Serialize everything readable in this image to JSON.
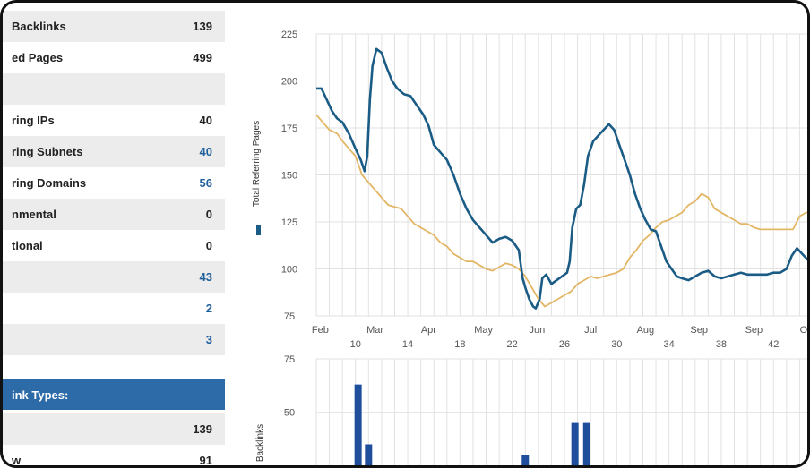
{
  "stats": {
    "rows": [
      {
        "label": "Backlinks",
        "value": "139",
        "blue": false
      },
      {
        "label": "ed Pages",
        "value": "499",
        "blue": false
      },
      {
        "label": "",
        "value": "",
        "blue": false
      },
      {
        "label": "ring IPs",
        "value": "40",
        "blue": false
      },
      {
        "label": "ring Subnets",
        "value": "40",
        "blue": true
      },
      {
        "label": "ring Domains",
        "value": "56",
        "blue": true
      },
      {
        "label": "nmental",
        "value": "0",
        "blue": false
      },
      {
        "label": "tional",
        "value": "0",
        "blue": false
      },
      {
        "label": "",
        "value": "43",
        "blue": true
      },
      {
        "label": "",
        "value": "2",
        "blue": true
      },
      {
        "label": "",
        "value": "3",
        "blue": true
      }
    ],
    "section_header": "ink Types:",
    "section_rows": [
      {
        "label": "",
        "value": "139"
      },
      {
        "label": "w",
        "value": "91"
      }
    ]
  },
  "colors": {
    "blue_series": "#1b5c86",
    "gold_series": "#e2b664",
    "bar": "#1f4e9c",
    "section": "#2c6aa8"
  },
  "chart_data": [
    {
      "type": "line",
      "ylabel": "Total Referring Pages",
      "ylim": [
        75,
        225
      ],
      "yticks": [
        75,
        100,
        125,
        150,
        175,
        200,
        225
      ],
      "xlim": [
        7,
        45
      ],
      "month_labels": [
        {
          "label": "Feb",
          "x": 7.3
        },
        {
          "label": "Mar",
          "x": 11.5
        },
        {
          "label": "Apr",
          "x": 15.6
        },
        {
          "label": "May",
          "x": 19.8
        },
        {
          "label": "Jun",
          "x": 23.9
        },
        {
          "label": "Jul",
          "x": 28.0
        },
        {
          "label": "Aug",
          "x": 32.2
        },
        {
          "label": "Sep",
          "x": 36.3
        },
        {
          "label": "Sep",
          "x": 40.5
        },
        {
          "label": "Oct",
          "x": 44.6
        }
      ],
      "week_labels": [
        "10",
        "14",
        "18",
        "22",
        "26",
        "30",
        "34",
        "38",
        "42"
      ],
      "grid": true,
      "series": [
        {
          "color": "blue",
          "points": [
            [
              7,
              196
            ],
            [
              7.4,
              196
            ],
            [
              7.8,
              190
            ],
            [
              8.2,
              184
            ],
            [
              8.6,
              180
            ],
            [
              9.0,
              178
            ],
            [
              9.5,
              172
            ],
            [
              10,
              164
            ],
            [
              10.4,
              158
            ],
            [
              10.7,
              152
            ],
            [
              10.9,
              160
            ],
            [
              11.1,
              190
            ],
            [
              11.3,
              208
            ],
            [
              11.6,
              217
            ],
            [
              12,
              215
            ],
            [
              12.4,
              207
            ],
            [
              12.8,
              200
            ],
            [
              13.2,
              196
            ],
            [
              13.7,
              193
            ],
            [
              14.2,
              192
            ],
            [
              14.6,
              188
            ],
            [
              15.2,
              182
            ],
            [
              15.6,
              176
            ],
            [
              16,
              166
            ],
            [
              16.5,
              162
            ],
            [
              17,
              158
            ],
            [
              17.5,
              150
            ],
            [
              18,
              140
            ],
            [
              18.5,
              132
            ],
            [
              19,
              126
            ],
            [
              19.5,
              122
            ],
            [
              20,
              118
            ],
            [
              20.5,
              114
            ],
            [
              21,
              116
            ],
            [
              21.5,
              117
            ],
            [
              22,
              115
            ],
            [
              22.5,
              110
            ],
            [
              22.8,
              95
            ],
            [
              23,
              90
            ],
            [
              23.3,
              84
            ],
            [
              23.6,
              80
            ],
            [
              23.8,
              79
            ],
            [
              24.1,
              84
            ],
            [
              24.3,
              95
            ],
            [
              24.6,
              97
            ],
            [
              25,
              92
            ],
            [
              25.4,
              94
            ],
            [
              25.8,
              96
            ],
            [
              26.2,
              98
            ],
            [
              26.4,
              104
            ],
            [
              26.6,
              122
            ],
            [
              26.9,
              132
            ],
            [
              27.2,
              134
            ],
            [
              27.5,
              145
            ],
            [
              27.8,
              160
            ],
            [
              28.2,
              168
            ],
            [
              28.6,
              171
            ],
            [
              29,
              174
            ],
            [
              29.4,
              177
            ],
            [
              29.8,
              174
            ],
            [
              30.2,
              166
            ],
            [
              30.6,
              158
            ],
            [
              31,
              150
            ],
            [
              31.4,
              140
            ],
            [
              31.8,
              132
            ],
            [
              32.2,
              126
            ],
            [
              32.6,
              121
            ],
            [
              33,
              120
            ],
            [
              33.4,
              112
            ],
            [
              33.8,
              104
            ],
            [
              34.2,
              100
            ],
            [
              34.6,
              96
            ],
            [
              35,
              95
            ],
            [
              35.5,
              94
            ],
            [
              36,
              96
            ],
            [
              36.5,
              98
            ],
            [
              37,
              99
            ],
            [
              37.5,
              96
            ],
            [
              38,
              95
            ],
            [
              38.5,
              96
            ],
            [
              39,
              97
            ],
            [
              39.5,
              98
            ],
            [
              40,
              97
            ],
            [
              40.5,
              97
            ],
            [
              41,
              97
            ],
            [
              41.5,
              97
            ],
            [
              42,
              98
            ],
            [
              42.5,
              98
            ],
            [
              43,
              100
            ],
            [
              43.4,
              107
            ],
            [
              43.8,
              111
            ],
            [
              44.2,
              108
            ],
            [
              44.6,
              105
            ],
            [
              45,
              103
            ]
          ]
        },
        {
          "color": "gold",
          "points": [
            [
              7,
              182
            ],
            [
              7.5,
              178
            ],
            [
              8,
              174
            ],
            [
              8.6,
              172
            ],
            [
              9.0,
              168
            ],
            [
              9.5,
              164
            ],
            [
              10,
              160
            ],
            [
              10.5,
              150
            ],
            [
              11,
              146
            ],
            [
              11.5,
              142
            ],
            [
              12,
              138
            ],
            [
              12.5,
              134
            ],
            [
              13,
              133
            ],
            [
              13.5,
              132
            ],
            [
              14,
              128
            ],
            [
              14.5,
              124
            ],
            [
              15,
              122
            ],
            [
              15.5,
              120
            ],
            [
              16,
              118
            ],
            [
              16.5,
              114
            ],
            [
              17,
              112
            ],
            [
              17.5,
              108
            ],
            [
              18,
              106
            ],
            [
              18.5,
              104
            ],
            [
              19,
              104
            ],
            [
              19.5,
              102
            ],
            [
              20,
              100
            ],
            [
              20.5,
              99
            ],
            [
              21,
              101
            ],
            [
              21.5,
              103
            ],
            [
              22,
              102
            ],
            [
              22.5,
              100
            ],
            [
              23,
              96
            ],
            [
              23.5,
              90
            ],
            [
              24,
              84
            ],
            [
              24.5,
              80
            ],
            [
              25,
              82
            ],
            [
              25.5,
              84
            ],
            [
              26,
              86
            ],
            [
              26.5,
              88
            ],
            [
              27,
              92
            ],
            [
              27.5,
              94
            ],
            [
              28,
              96
            ],
            [
              28.5,
              95
            ],
            [
              29,
              96
            ],
            [
              29.5,
              97
            ],
            [
              30,
              98
            ],
            [
              30.5,
              100
            ],
            [
              31,
              106
            ],
            [
              31.5,
              110
            ],
            [
              32,
              115
            ],
            [
              32.5,
              118
            ],
            [
              33,
              122
            ],
            [
              33.5,
              125
            ],
            [
              34,
              126
            ],
            [
              34.5,
              128
            ],
            [
              35,
              130
            ],
            [
              35.5,
              134
            ],
            [
              36,
              136
            ],
            [
              36.5,
              140
            ],
            [
              37,
              138
            ],
            [
              37.5,
              132
            ],
            [
              38,
              130
            ],
            [
              38.5,
              128
            ],
            [
              39,
              126
            ],
            [
              39.5,
              124
            ],
            [
              40,
              124
            ],
            [
              40.5,
              122
            ],
            [
              41,
              121
            ],
            [
              41.5,
              121
            ],
            [
              42,
              121
            ],
            [
              42.5,
              121
            ],
            [
              43,
              121
            ],
            [
              43.5,
              121
            ],
            [
              44,
              128
            ],
            [
              44.5,
              130
            ],
            [
              45,
              130
            ]
          ]
        }
      ]
    },
    {
      "type": "bar",
      "ylabel": "Backlinks",
      "ylim": [
        0,
        75
      ],
      "yticks": [
        50,
        75
      ],
      "xlim": [
        7,
        45
      ],
      "bars": [
        {
          "x": 10.2,
          "value": 63
        },
        {
          "x": 11.0,
          "value": 35
        },
        {
          "x": 23.0,
          "value": 30
        },
        {
          "x": 26.8,
          "value": 45
        },
        {
          "x": 27.7,
          "value": 45
        }
      ]
    }
  ]
}
